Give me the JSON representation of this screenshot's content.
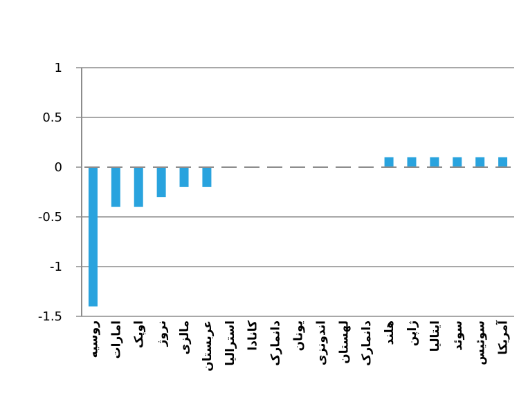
{
  "chart_data": {
    "type": "bar",
    "categories": [
      "روسیه",
      "امارات",
      "اوپک",
      "نروژ",
      "مالزی",
      "عربستان",
      "استرالیا",
      "کانادا",
      "دانمارک",
      "یونان",
      "اندونزی",
      "لهستان",
      "دانمارک",
      "هلند",
      "ژاپن",
      "ایتالیا",
      "سوئد",
      "سوئیس",
      "آمریکا"
    ],
    "values": [
      -1.4,
      -0.4,
      -0.4,
      -0.3,
      -0.2,
      -0.2,
      0,
      0,
      0,
      0,
      0,
      0,
      0,
      0.1,
      0.1,
      0.1,
      0.1,
      0.1,
      0.1
    ],
    "ylim": [
      -1.5,
      1
    ],
    "yticks": [
      "1",
      "0.5",
      "0",
      "-0.5",
      "-1",
      "-1.5"
    ],
    "ytick_values": [
      1,
      0.5,
      0,
      -0.5,
      -1,
      -1.5
    ],
    "grid": true,
    "bar_color": "#29a3de",
    "grid_color": "#8c8c8c",
    "axis_color": "#8c8c8c"
  }
}
